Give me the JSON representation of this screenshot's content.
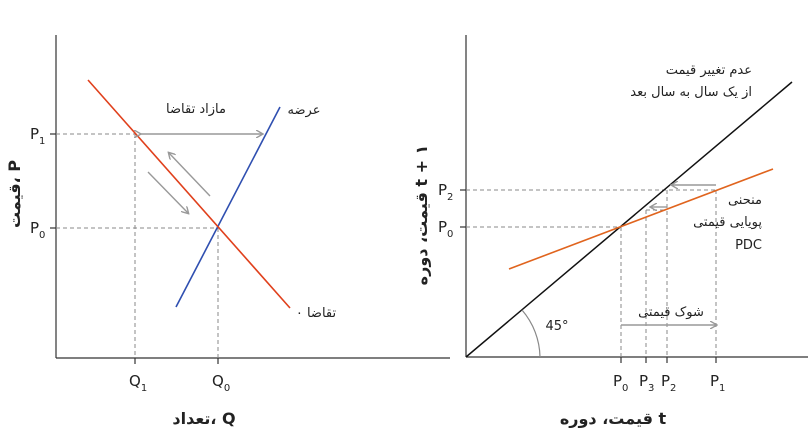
{
  "colors": {
    "supply": "#2f4fb0",
    "demand": "#e0401c",
    "pdc": "#e0641e",
    "no_change": "#111111",
    "guide": "#888888",
    "arrow": "#999999"
  },
  "left_chart": {
    "y_axis_title": "قیمت، P",
    "x_axis_title": "تعداد، Q",
    "p1": {
      "main": "P",
      "sub": "1"
    },
    "p0": {
      "main": "P",
      "sub": "0"
    },
    "q1": {
      "main": "Q",
      "sub": "1"
    },
    "q0": {
      "main": "Q",
      "sub": "0"
    },
    "excess_demand": "مازاد تقاضا",
    "supply_label": "عرضه",
    "demand_label": "تقاضا ۰"
  },
  "right_chart": {
    "y_axis_title": "قیمت، دوره t + ۱",
    "x_axis_title": "قیمت، دوره t",
    "p2_y": {
      "main": "P",
      "sub": "2"
    },
    "p0_y": {
      "main": "P",
      "sub": "0"
    },
    "x_ticks": [
      {
        "main": "P",
        "sub": "0"
      },
      {
        "main": "P",
        "sub": "3"
      },
      {
        "main": "P",
        "sub": "2"
      },
      {
        "main": "P",
        "sub": "1"
      }
    ],
    "no_change_line1": "عدم تغییر قیمت",
    "no_change_line2": "از یک سال به سال بعد",
    "pdc_line1": "منحنی",
    "pdc_line2": "پویایی قیمتی",
    "pdc_line3": "PDC",
    "price_shock": "شوک قیمتی",
    "angle": "45°"
  }
}
